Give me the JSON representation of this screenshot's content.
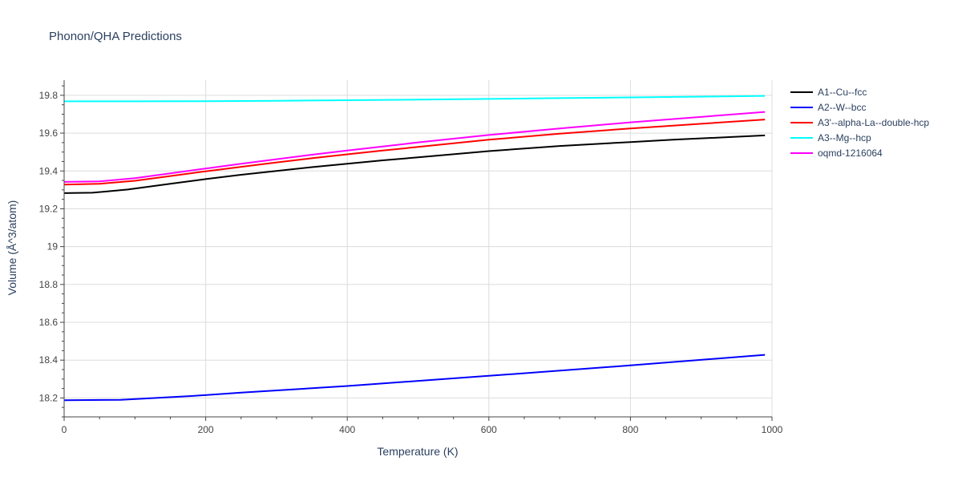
{
  "chart_data": {
    "type": "line",
    "title": "Phonon/QHA Predictions",
    "xlabel": "Temperature (K)",
    "ylabel": "Volume (Å^3/atom)",
    "xlim": [
      0,
      1000
    ],
    "ylim": [
      18.1,
      19.88
    ],
    "xticks": [
      0,
      200,
      400,
      600,
      800,
      1000
    ],
    "yticks": [
      18.2,
      18.4,
      18.6,
      18.8,
      19,
      19.2,
      19.4,
      19.6,
      19.8
    ],
    "xtick_labels": [
      "0",
      "200",
      "400",
      "600",
      "800",
      "1000"
    ],
    "ytick_labels": [
      "18.2",
      "18.4",
      "18.6",
      "18.8",
      "19",
      "19.2",
      "19.4",
      "19.6",
      "19.8"
    ],
    "grid": true,
    "legend_position": "right",
    "series": [
      {
        "name": "A1--Cu--fcc",
        "color": "#000000",
        "x": [
          0,
          40,
          90,
          150,
          200,
          250,
          300,
          350,
          400,
          450,
          500,
          600,
          700,
          800,
          860,
          990
        ],
        "y": [
          19.283,
          19.285,
          19.302,
          19.332,
          19.357,
          19.38,
          19.4,
          19.42,
          19.438,
          19.456,
          19.472,
          19.505,
          19.532,
          19.553,
          19.565,
          19.588
        ]
      },
      {
        "name": "A2--W--bcc",
        "color": "#0000ff",
        "x": [
          0,
          80,
          180,
          250,
          400,
          600,
          800,
          990
        ],
        "y": [
          18.188,
          18.19,
          18.21,
          18.228,
          18.263,
          18.317,
          18.372,
          18.428
        ]
      },
      {
        "name": "A3'--alpha-La--double-hcp",
        "color": "#ff0000",
        "x": [
          0,
          50,
          100,
          150,
          200,
          250,
          300,
          350,
          400,
          450,
          500,
          600,
          700,
          800,
          990
        ],
        "y": [
          19.328,
          19.332,
          19.348,
          19.373,
          19.398,
          19.422,
          19.445,
          19.467,
          19.488,
          19.508,
          19.527,
          19.565,
          19.597,
          19.625,
          19.672
        ]
      },
      {
        "name": "A3--Mg--hcp",
        "color": "#00ffff",
        "x": [
          0,
          100,
          200,
          300,
          400,
          500,
          600,
          700,
          800,
          990
        ],
        "y": [
          19.768,
          19.768,
          19.769,
          19.771,
          19.774,
          19.777,
          19.781,
          19.785,
          19.789,
          19.797
        ]
      },
      {
        "name": "oqmd-1216064",
        "color": "#ff00ff",
        "x": [
          0,
          50,
          100,
          150,
          200,
          250,
          300,
          350,
          400,
          450,
          500,
          600,
          700,
          800,
          990
        ],
        "y": [
          19.342,
          19.345,
          19.362,
          19.387,
          19.413,
          19.438,
          19.462,
          19.486,
          19.508,
          19.529,
          19.551,
          19.59,
          19.625,
          19.657,
          19.712
        ]
      }
    ]
  }
}
